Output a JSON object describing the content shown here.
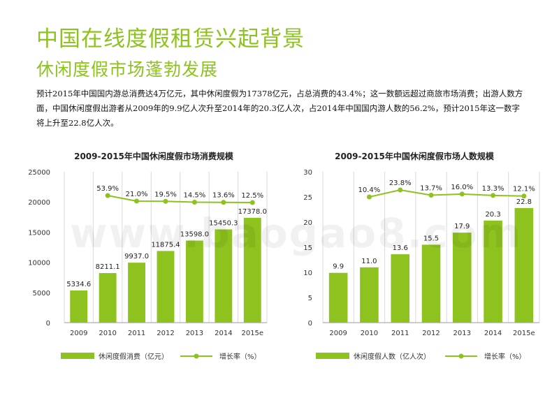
{
  "page": {
    "title": "中国在线度假租赁兴起背景",
    "subtitle": "休闲度假市场蓬勃发展",
    "paragraph": "预计2015年中国国内游总消费达4万亿元，其中休闲度假为17378亿元，占总消费的43.4%；这一数额远超过商旅市场消费；出游人数方面，中国休闲度假出游者从2009年的9.9亿人次升至2014年的20.3亿人次，占2014年中国国内游人数的56.2%，预计2015年这一数字将上升至22.8亿人次。",
    "watermark": "www.baogao8.com"
  },
  "colors": {
    "accent": "#8dc21f",
    "grid": "#d9d9d9"
  },
  "chart_data": [
    {
      "type": "bar",
      "title": "2009-2015年中国休闲度假市场消费规模",
      "categories": [
        "2009",
        "2010",
        "2011",
        "2012",
        "2013",
        "2014",
        "2015e"
      ],
      "ylim": [
        0,
        25000
      ],
      "yticks": [
        "0",
        "5000",
        "10000",
        "15000",
        "20000",
        "25000"
      ],
      "series": [
        {
          "name": "休闲度假消费（亿元）",
          "kind": "bar",
          "values": [
            5334.6,
            8211.1,
            9937.0,
            11875.4,
            13598.0,
            15450.3,
            17378.0
          ],
          "labels": [
            "5334.6",
            "8211.1",
            "9937.0",
            "11875.4",
            "13598.0",
            "15450.3",
            "17378.0"
          ]
        },
        {
          "name": "增长率（%）",
          "kind": "line",
          "values": [
            null,
            53.9,
            21.0,
            19.5,
            14.5,
            13.6,
            12.5
          ],
          "labels": [
            "",
            "53.9%",
            "21.0%",
            "19.5%",
            "14.5%",
            "13.6%",
            "12.5%"
          ]
        }
      ]
    },
    {
      "type": "bar",
      "title": "2009-2015年中国休闲度假市场人数规模",
      "categories": [
        "2009",
        "2010",
        "2011",
        "2012",
        "2013",
        "2014",
        "2015e"
      ],
      "ylim": [
        0,
        30
      ],
      "yticks": [
        "0",
        "5",
        "10",
        "15",
        "20",
        "25",
        "30"
      ],
      "series": [
        {
          "name": "休闲度假人数（亿人次）",
          "kind": "bar",
          "values": [
            9.9,
            11.0,
            13.6,
            15.5,
            17.9,
            20.3,
            22.8
          ],
          "labels": [
            "9.9",
            "11.0",
            "13.6",
            "15.5",
            "17.9",
            "20.3",
            "22.8"
          ]
        },
        {
          "name": "增长率（%）",
          "kind": "line",
          "values": [
            null,
            10.4,
            23.8,
            13.7,
            16.0,
            13.3,
            12.1
          ],
          "labels": [
            "",
            "10.4%",
            "23.8%",
            "13.7%",
            "16.0%",
            "13.3%",
            "12.1%"
          ]
        }
      ]
    }
  ]
}
